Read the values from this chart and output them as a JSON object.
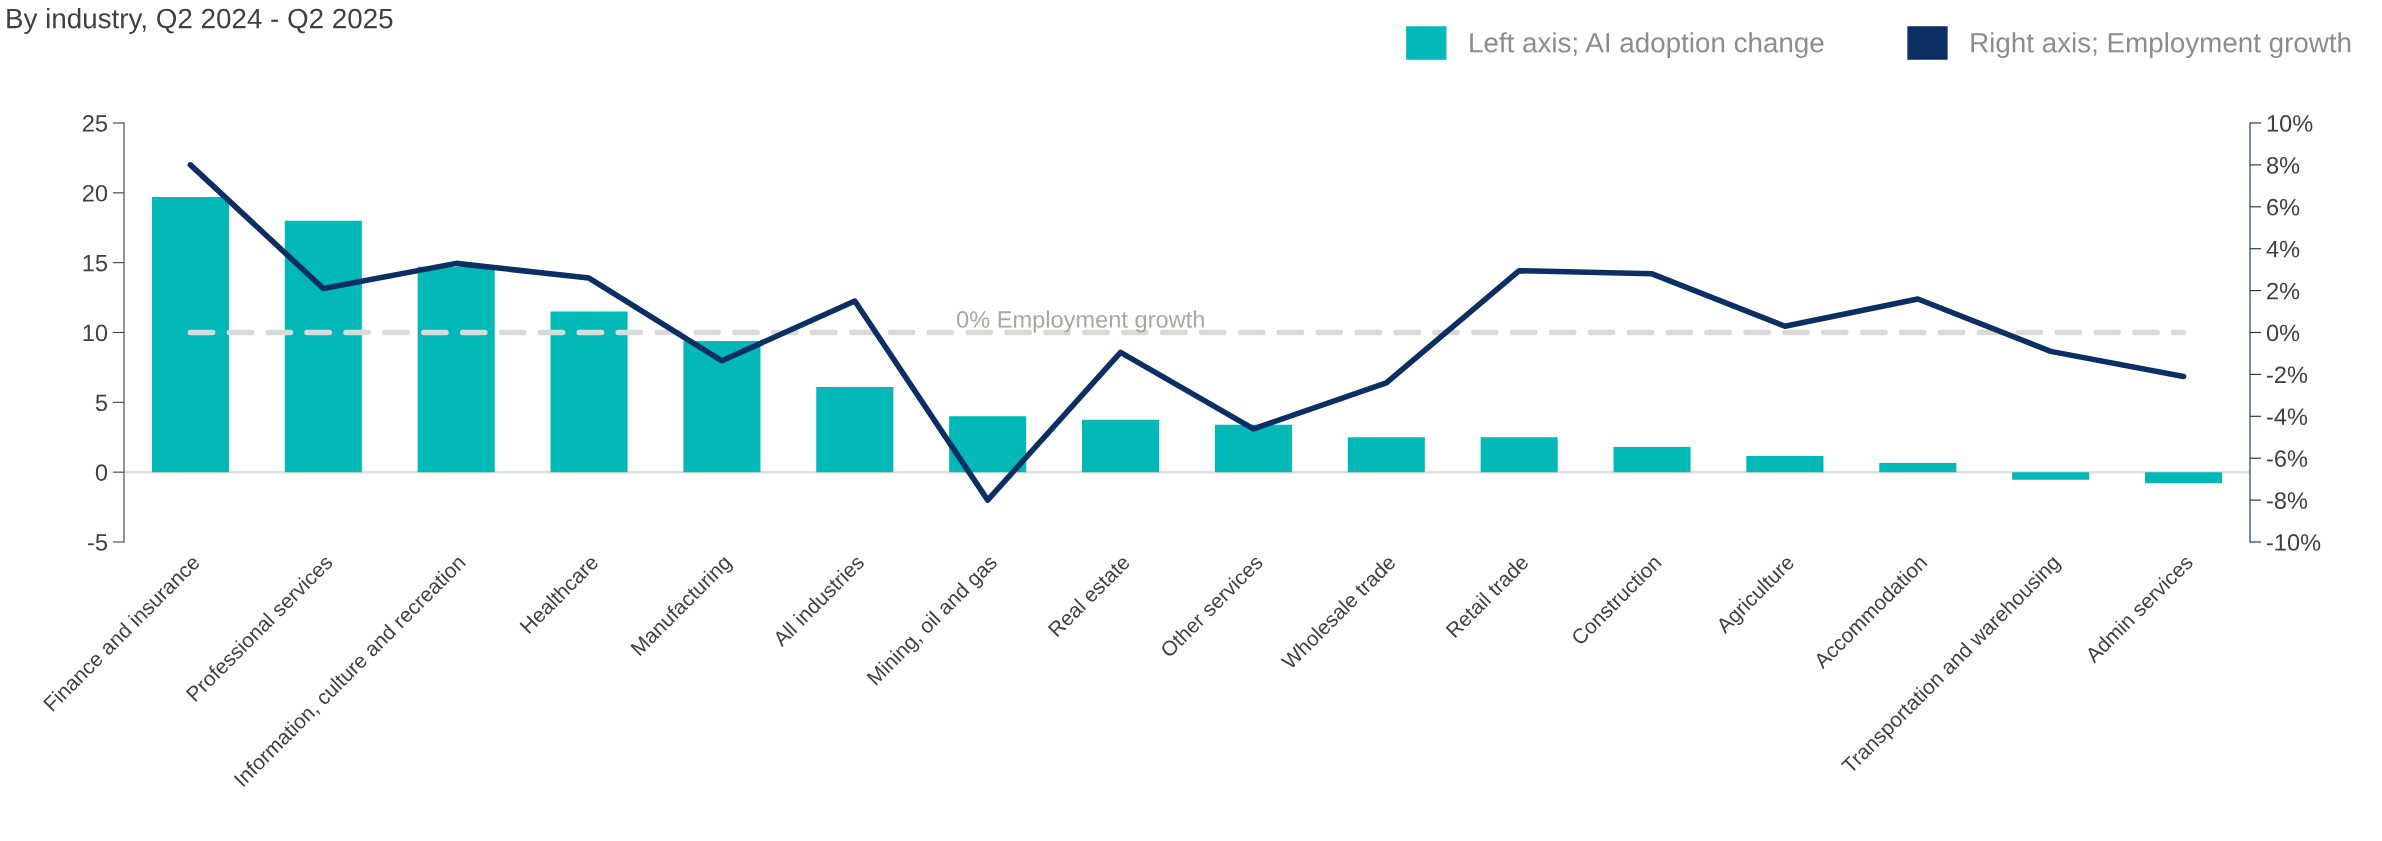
{
  "chart_data": {
    "type": "bar",
    "subtitle": "By industry, Q2 2024 - Q2 2025",
    "categories": [
      "Finance and insurance",
      "Professional services",
      "Information, culture and recreation",
      "Healthcare",
      "Manufacturing",
      "All industries",
      "Mining, oil and gas",
      "Real estate",
      "Other services",
      "Wholesale trade",
      "Retail trade",
      "Construction",
      "Agriculture",
      "Accommodation",
      "Transportation and warehousing",
      "Admin services"
    ],
    "series": [
      {
        "name": "Left axis; AI adoption change",
        "color": "#00b8b5",
        "values": [
          19.7,
          18.0,
          14.7,
          11.5,
          9.4,
          6.1,
          4.0,
          3.75,
          3.4,
          2.5,
          2.5,
          1.8,
          1.15,
          0.65,
          -0.55,
          -0.8
        ]
      },
      {
        "name": "Right axis; Employment growth",
        "type": "line",
        "axis": "y2",
        "color": "#0b2f63",
        "values": [
          8.0,
          2.1,
          3.3,
          2.6,
          -1.35,
          1.5,
          -8.0,
          -0.95,
          -4.6,
          -2.4,
          2.95,
          2.8,
          0.3,
          1.6,
          -0.9,
          -2.1
        ]
      }
    ],
    "ylim": [
      -5,
      25
    ],
    "yticks": [
      -5,
      0,
      5,
      10,
      15,
      20,
      25
    ],
    "y2lim": [
      -10,
      10
    ],
    "y2ticks": [
      {
        "value": -10,
        "label": "-10%"
      },
      {
        "value": -8,
        "label": "-8%"
      },
      {
        "value": -6,
        "label": "-6%"
      },
      {
        "value": -4,
        "label": "-4%"
      },
      {
        "value": -2,
        "label": "-2%"
      },
      {
        "value": 0,
        "label": "0%"
      },
      {
        "value": 2,
        "label": "2%"
      },
      {
        "value": 4,
        "label": "4%"
      },
      {
        "value": 6,
        "label": "6%"
      },
      {
        "value": 8,
        "label": "8%"
      },
      {
        "value": 10,
        "label": "10%"
      }
    ],
    "ref_lines": [
      {
        "axis": "y2",
        "value": 0,
        "label": "0% Employment growth",
        "color": "#d9d9d6",
        "line_style": "dashed"
      }
    ],
    "grid": false,
    "legend": "top right"
  }
}
